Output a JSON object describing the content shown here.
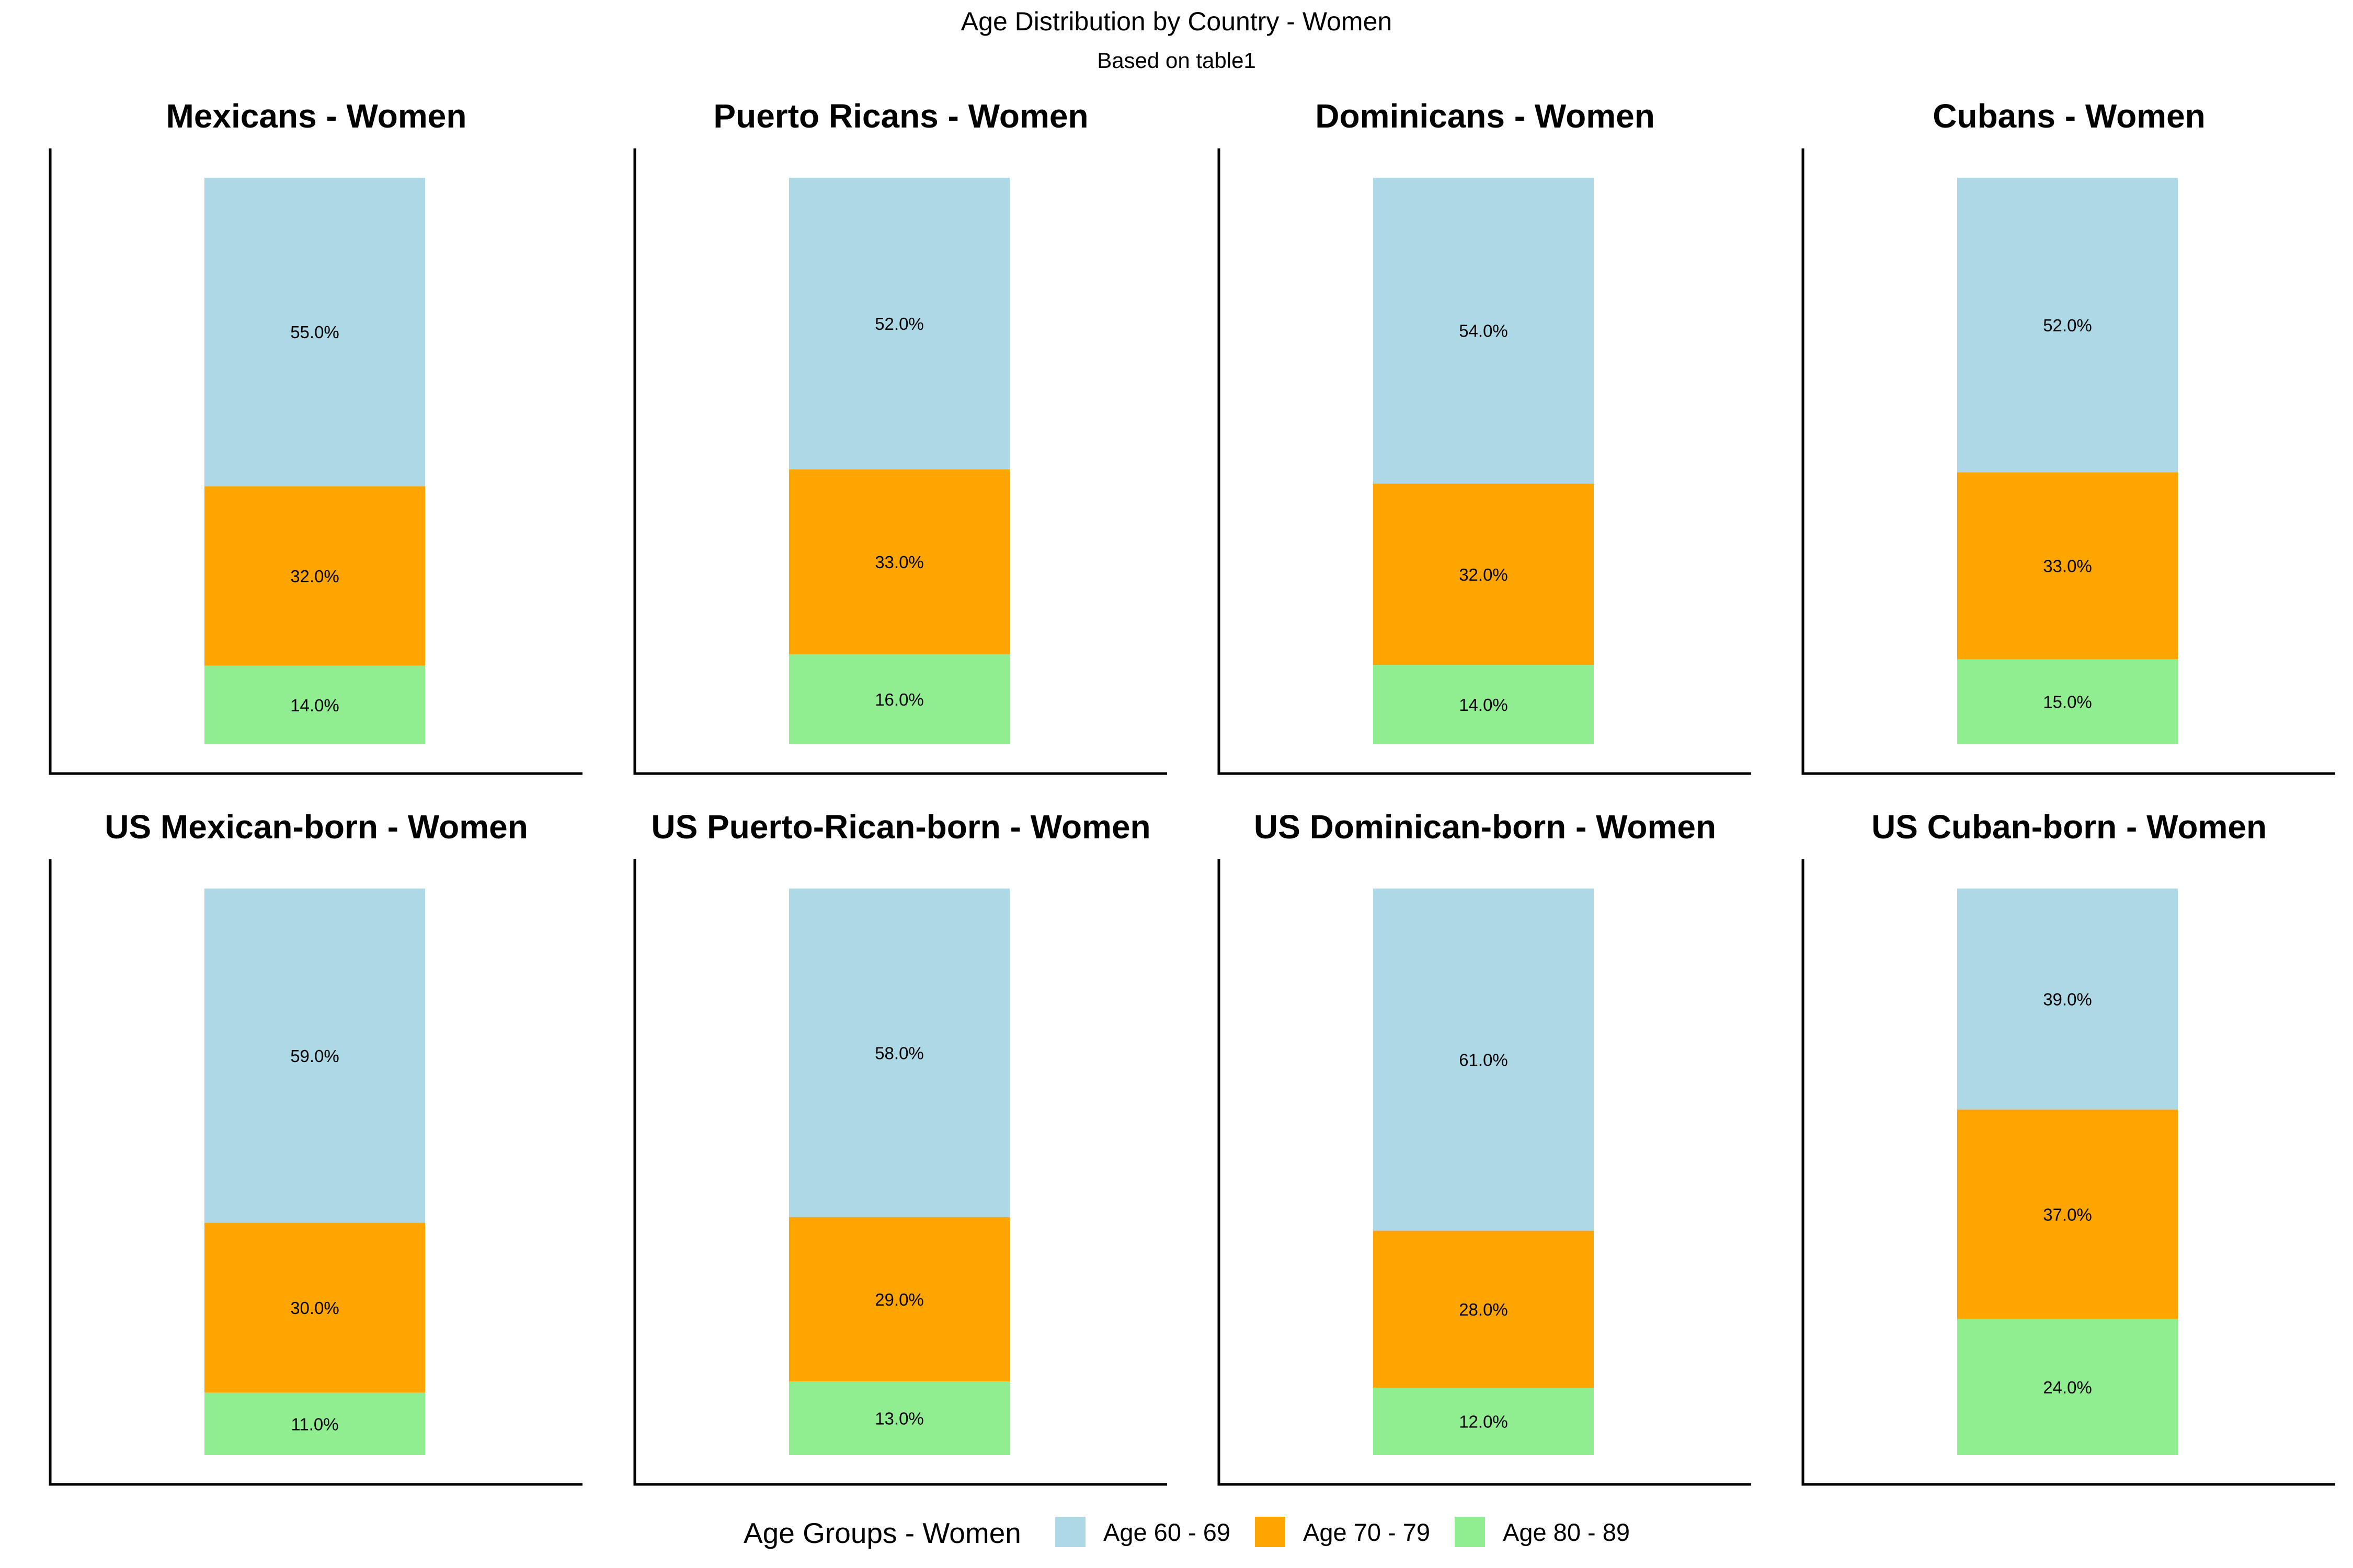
{
  "chart_data": {
    "type": "bar",
    "stacked": true,
    "title": "Age Distribution by Country - Women",
    "subtitle": "Based on table1",
    "legend": {
      "title": "Age Groups - Women",
      "position": "bottom",
      "items": [
        {
          "label": "Age 60 - 69",
          "color": "#ADD8E6"
        },
        {
          "label": "Age 70 - 79",
          "color": "#FFA500"
        },
        {
          "label": "Age 80 - 89",
          "color": "#90EE90"
        }
      ]
    },
    "panels": [
      {
        "title": "Mexicans - Women",
        "values": [
          55.0,
          32.0,
          14.0
        ],
        "labels": [
          "55.0%",
          "32.0%",
          "14.0%"
        ]
      },
      {
        "title": "Puerto Ricans - Women",
        "values": [
          52.0,
          33.0,
          16.0
        ],
        "labels": [
          "52.0%",
          "33.0%",
          "16.0%"
        ]
      },
      {
        "title": "Dominicans - Women",
        "values": [
          54.0,
          32.0,
          14.0
        ],
        "labels": [
          "54.0%",
          "32.0%",
          "14.0%"
        ]
      },
      {
        "title": "Cubans - Women",
        "values": [
          52.0,
          33.0,
          15.0
        ],
        "labels": [
          "52.0%",
          "33.0%",
          "15.0%"
        ]
      },
      {
        "title": "US Mexican-born - Women",
        "values": [
          59.0,
          30.0,
          11.0
        ],
        "labels": [
          "59.0%",
          "30.0%",
          "11.0%"
        ]
      },
      {
        "title": "US Puerto-Rican-born - Women",
        "values": [
          58.0,
          29.0,
          13.0
        ],
        "labels": [
          "58.0%",
          "29.0%",
          "13.0%"
        ]
      },
      {
        "title": "US Dominican-born - Women",
        "values": [
          61.0,
          28.0,
          12.0
        ],
        "labels": [
          "61.0%",
          "28.0%",
          "12.0%"
        ]
      },
      {
        "title": "US Cuban-born - Women",
        "values": [
          39.0,
          37.0,
          24.0
        ],
        "labels": [
          "39.0%",
          "37.0%",
          "24.0%"
        ]
      }
    ]
  }
}
